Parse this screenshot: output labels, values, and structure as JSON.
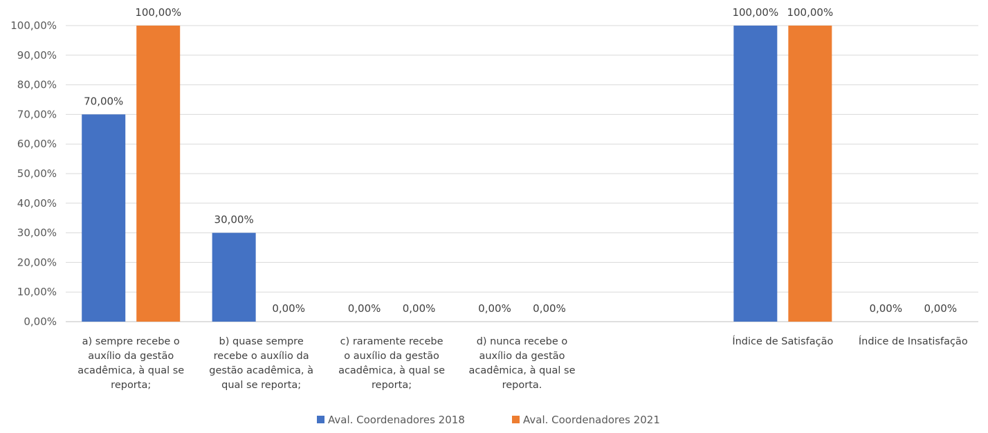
{
  "chart_data": {
    "type": "bar",
    "title": "",
    "ylim": [
      0,
      100
    ],
    "y_ticks": [
      "0,00%",
      "10,00%",
      "20,00%",
      "30,00%",
      "40,00%",
      "50,00%",
      "60,00%",
      "70,00%",
      "80,00%",
      "90,00%",
      "100,00%"
    ],
    "categories": [
      [
        "a) sempre recebe o",
        "auxílio da gestão",
        "acadêmica, à qual se",
        "reporta;"
      ],
      [
        "b) quase sempre",
        "recebe o auxílio da",
        "gestão acadêmica, à",
        "qual se reporta;"
      ],
      [
        "c) raramente recebe",
        "o auxílio da gestão",
        "acadêmica, à qual se",
        "reporta;"
      ],
      [
        "d) nunca recebe o",
        "auxílio da gestão",
        "acadêmica, à qual se",
        "reporta."
      ],
      [],
      [
        "Índice de Satisfação"
      ],
      [
        "Índice de Insatisfação"
      ]
    ],
    "series": [
      {
        "name": "Aval. Coordenadores 2018",
        "color": "#4472C4",
        "values": [
          70,
          30,
          0,
          0,
          null,
          100,
          0
        ],
        "labels": [
          "70,00%",
          "30,00%",
          "0,00%",
          "0,00%",
          "",
          "100,00%",
          "0,00%"
        ]
      },
      {
        "name": "Aval. Coordenadores 2021",
        "color": "#ED7D31",
        "values": [
          100,
          0,
          0,
          0,
          null,
          100,
          0
        ],
        "labels": [
          "100,00%",
          "0,00%",
          "0,00%",
          "0,00%",
          "",
          "100,00%",
          "0,00%"
        ]
      }
    ],
    "grid": true,
    "legend_position": "bottom"
  },
  "colors": {
    "gridline": "#D9D9D9",
    "axis": "#BFBFBF"
  }
}
